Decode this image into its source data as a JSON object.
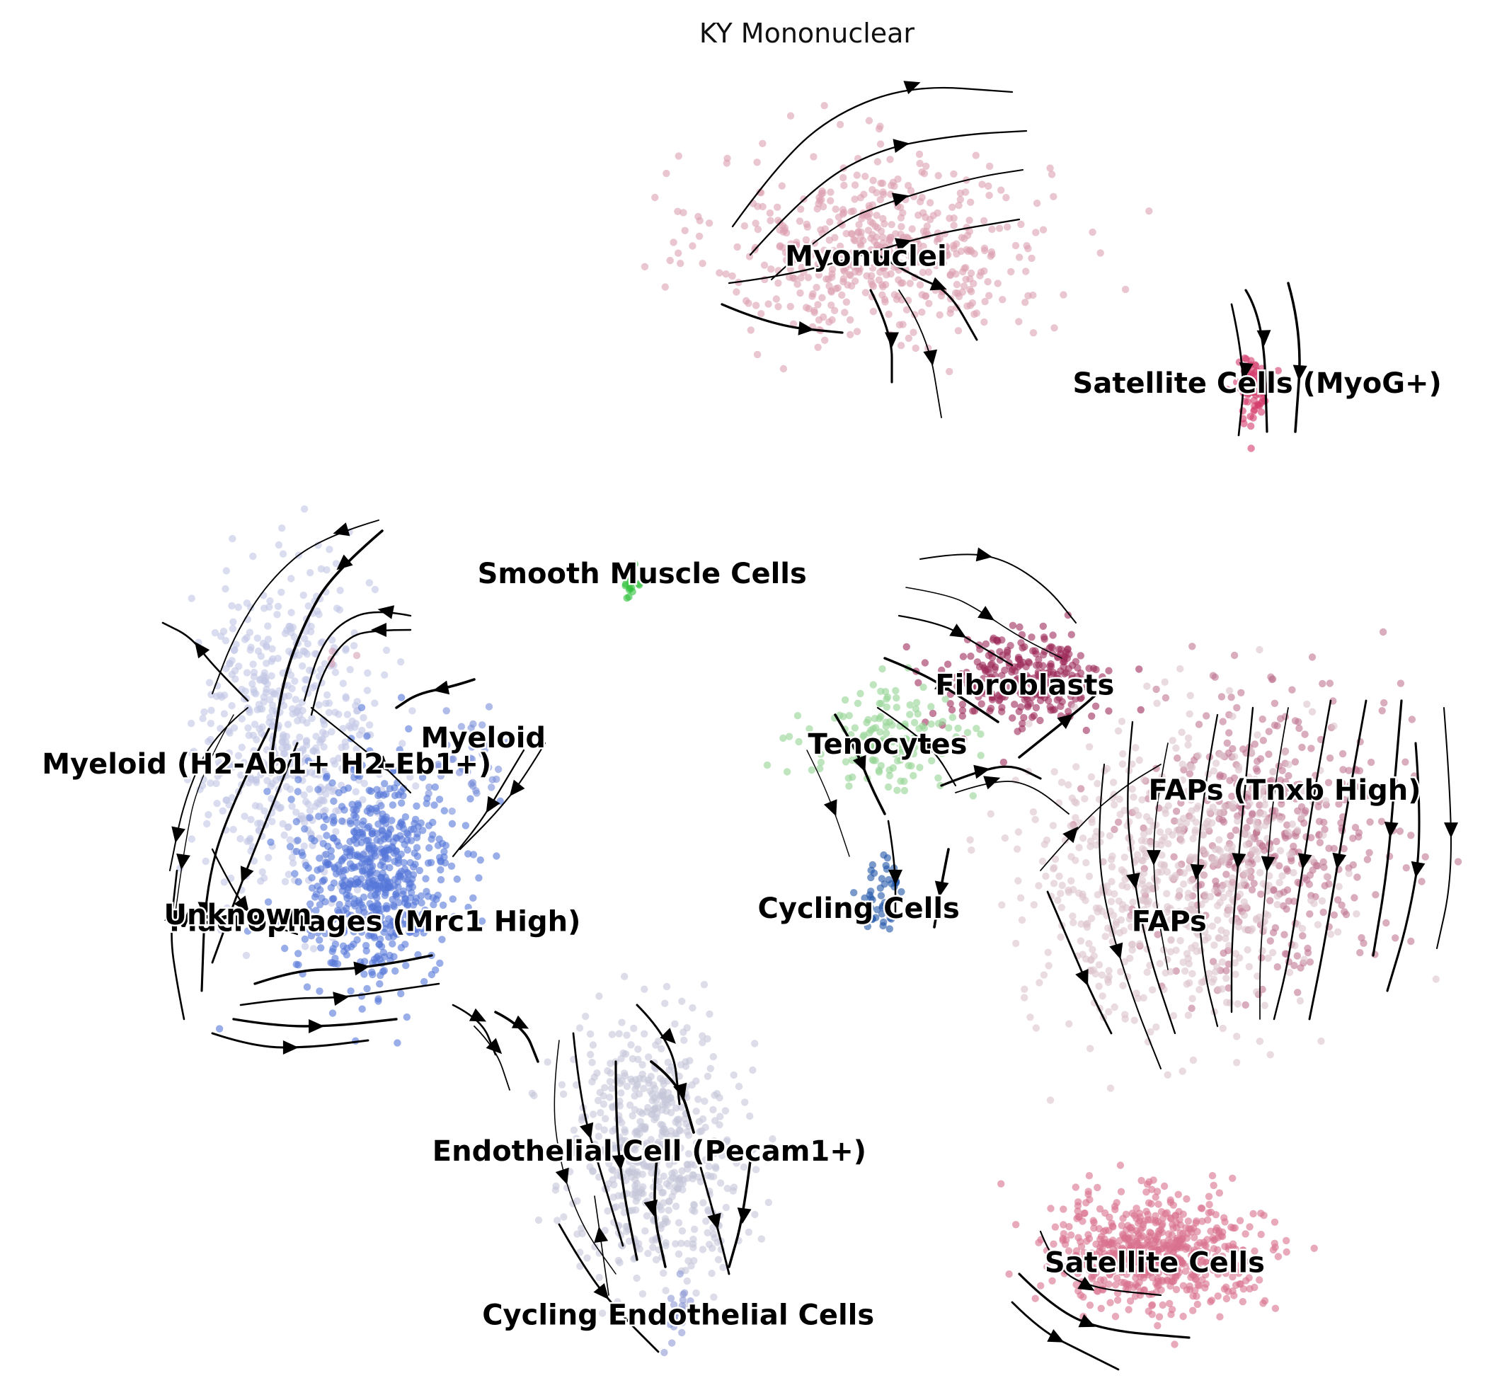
{
  "chart_data": {
    "type": "scatter",
    "title": "KY Mononuclear",
    "xlabel": "",
    "ylabel": "",
    "xlim": [
      0,
      100
    ],
    "ylim": [
      0,
      100
    ],
    "axes_visible": false,
    "grid": false,
    "legend": "on data",
    "overlay": "velocity streamlines",
    "clusters": [
      {
        "name": "Myonuclei",
        "color": "#dca0b0",
        "label_pos": [
          58.5,
          85.2
        ],
        "center": [
          59.5,
          86.0
        ],
        "spread": [
          10.5,
          6.5
        ],
        "n": 520
      },
      {
        "name": "Satellite Cells (MyoG+)",
        "color": "#d43a6a",
        "label_pos": [
          85.6,
          75.5
        ],
        "center": [
          85.3,
          75.2
        ],
        "spread": [
          1.1,
          2.5
        ],
        "n": 70
      },
      {
        "name": "Smooth Muscle Cells",
        "color": "#2fc23a",
        "label_pos": [
          43.0,
          61.0
        ],
        "center": [
          42.2,
          60.6
        ],
        "spread": [
          0.6,
          1.2
        ],
        "n": 18
      },
      {
        "name": "Myeloid (H2-Ab1+ H2-Eb1+)",
        "color": "#c2c6e4",
        "label_pos": [
          17.0,
          46.5
        ],
        "center": [
          18.5,
          49.0
        ],
        "spread": [
          5.5,
          11.0
        ],
        "n": 560
      },
      {
        "name": "Myeloid",
        "color": "#7a8fda",
        "label_pos": [
          32.0,
          48.5
        ],
        "center": [
          31.0,
          47.0
        ],
        "spread": [
          2.5,
          3.0
        ],
        "n": 40
      },
      {
        "name": "Macrophages (Mrc1 High)",
        "color": "#5576d8",
        "label_pos": [
          24.5,
          34.5
        ],
        "center": [
          24.5,
          38.0
        ],
        "spread": [
          5.0,
          7.5
        ],
        "n": 620
      },
      {
        "name": "Unknown",
        "color": "#d3a0b5",
        "label_pos": [
          15.0,
          35.0
        ],
        "center": [
          21.0,
          55.0
        ],
        "spread": [
          2.0,
          2.0
        ],
        "n": 4
      },
      {
        "name": "Fibroblasts",
        "color": "#9c2c5a",
        "label_pos": [
          69.5,
          52.5
        ],
        "center": [
          69.5,
          53.0
        ],
        "spread": [
          5.5,
          3.5
        ],
        "n": 260
      },
      {
        "name": "Tenocytes",
        "color": "#94d494",
        "label_pos": [
          60.0,
          48.0
        ],
        "center": [
          60.0,
          48.5
        ],
        "spread": [
          5.0,
          3.5
        ],
        "n": 150
      },
      {
        "name": "FAPs (Tnxb High)",
        "color": "#c07792",
        "label_pos": [
          87.5,
          44.5
        ],
        "center": [
          86.5,
          41.5
        ],
        "spread": [
          7.5,
          10.0
        ],
        "n": 420
      },
      {
        "name": "FAPs",
        "color": "#dcc3cc",
        "label_pos": [
          79.5,
          34.5
        ],
        "center": [
          79.5,
          38.0
        ],
        "spread": [
          9.0,
          10.5
        ],
        "n": 620
      },
      {
        "name": "Cycling Cells",
        "color": "#1f55a8",
        "label_pos": [
          58.0,
          35.5
        ],
        "center": [
          59.5,
          36.5
        ],
        "spread": [
          1.4,
          2.5
        ],
        "n": 45
      },
      {
        "name": "Endothelial Cell (Pecam1+)",
        "color": "#c4c6d8",
        "label_pos": [
          43.5,
          17.0
        ],
        "center": [
          44.0,
          17.5
        ],
        "spread": [
          5.5,
          8.5
        ],
        "n": 560
      },
      {
        "name": "Cycling Endothelial Cells",
        "color": "#8d9ad6",
        "label_pos": [
          45.5,
          4.5
        ],
        "center": [
          45.4,
          4.5
        ],
        "spread": [
          1.0,
          2.0
        ],
        "n": 20
      },
      {
        "name": "Satellite Cells",
        "color": "#d9718e",
        "label_pos": [
          78.5,
          8.5
        ],
        "center": [
          78.5,
          9.5
        ],
        "spread": [
          6.5,
          3.8
        ],
        "n": 620
      }
    ]
  }
}
